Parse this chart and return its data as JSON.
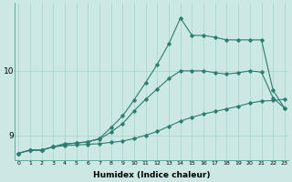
{
  "xlabel": "Humidex (Indice chaleur)",
  "bg_color": "#cce8e4",
  "line_color": "#2d7d70",
  "x_ticks": [
    0,
    1,
    2,
    3,
    4,
    5,
    6,
    7,
    8,
    9,
    10,
    11,
    12,
    13,
    14,
    15,
    16,
    17,
    18,
    19,
    20,
    21,
    22,
    23
  ],
  "xlim": [
    -0.3,
    23.3
  ],
  "ylim": [
    8.62,
    11.05
  ],
  "yticks": [
    9,
    10
  ],
  "line1_x": [
    0,
    1,
    2,
    3,
    4,
    5,
    6,
    7,
    8,
    9,
    10,
    11,
    12,
    13,
    14,
    15,
    16,
    17,
    18,
    19,
    20,
    21,
    22,
    23
  ],
  "line1_y": [
    8.72,
    8.77,
    8.77,
    8.82,
    8.84,
    8.85,
    8.86,
    8.87,
    8.89,
    8.91,
    8.95,
    9.0,
    9.06,
    9.14,
    9.22,
    9.28,
    9.33,
    9.37,
    9.41,
    9.45,
    9.5,
    9.53,
    9.54,
    9.56
  ],
  "line2_x": [
    0,
    1,
    2,
    3,
    4,
    5,
    6,
    7,
    8,
    9,
    10,
    11,
    12,
    13,
    14,
    15,
    16,
    17,
    18,
    19,
    20,
    21,
    22,
    23
  ],
  "line2_y": [
    8.72,
    8.77,
    8.77,
    8.82,
    8.86,
    8.88,
    8.9,
    8.94,
    9.05,
    9.18,
    9.38,
    9.56,
    9.72,
    9.88,
    10.0,
    10.0,
    10.0,
    9.97,
    9.95,
    9.97,
    10.0,
    9.98,
    9.58,
    9.42
  ],
  "line3_x": [
    0,
    1,
    2,
    3,
    4,
    5,
    6,
    7,
    8,
    9,
    10,
    11,
    12,
    13,
    14,
    15,
    16,
    17,
    18,
    19,
    20,
    21,
    22,
    23
  ],
  "line3_y": [
    8.72,
    8.77,
    8.77,
    8.82,
    8.87,
    8.88,
    8.9,
    8.95,
    9.12,
    9.3,
    9.55,
    9.82,
    10.1,
    10.42,
    10.82,
    10.55,
    10.55,
    10.52,
    10.48,
    10.48,
    10.48,
    10.48,
    9.7,
    9.42
  ]
}
